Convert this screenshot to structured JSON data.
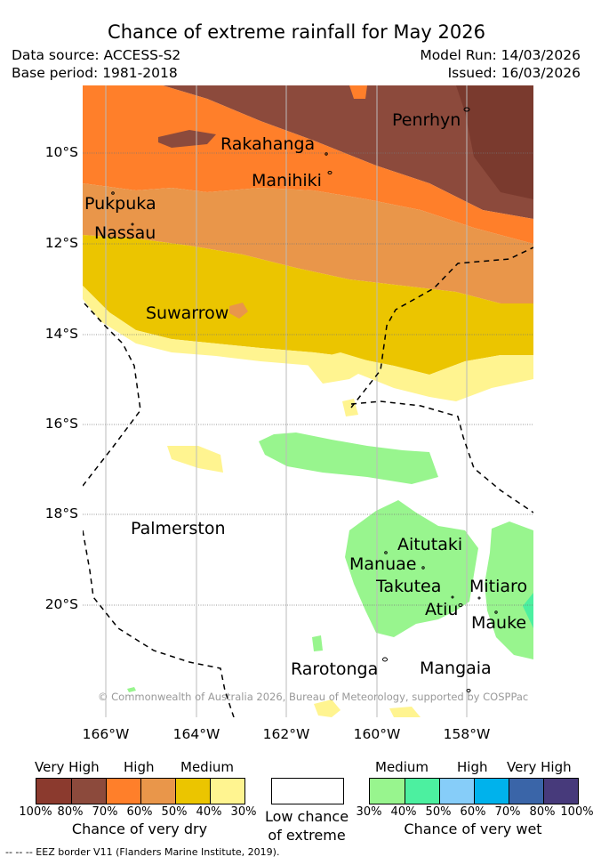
{
  "title": "Chance of extreme rainfall for May 2026",
  "meta": {
    "data_source": "Data source: ACCESS-S2",
    "base_period": "Base period: 1981-2018",
    "model_run": "Model Run: 14/03/2026",
    "issued": "Issued: 16/03/2026"
  },
  "axes": {
    "lat_labels": [
      "10°S",
      "12°S",
      "14°S",
      "16°S",
      "18°S",
      "20°S"
    ],
    "lon_labels": [
      "166°W",
      "164°W",
      "162°W",
      "160°W",
      "158°W"
    ]
  },
  "places": {
    "penrhyn": "Penrhyn",
    "rakahanga": "Rakahanga",
    "manihiki": "Manihiki",
    "pukapuka": "Pukpuka",
    "nassau": "Nassau",
    "suwarrow": "Suwarrow",
    "palmerston": "Palmerston",
    "aitutaki": "Aitutaki",
    "manuae": "Manuae",
    "takutea": "Takutea",
    "mitiaro": "Mitiaro",
    "atiu": "Atiu",
    "mauke": "Mauke",
    "rarotonga": "Rarotonga",
    "mangaia": "Mangaia"
  },
  "copyright": "© Commonwealth of Australia 2026, Bureau of Meteorology, supported by COSPPac",
  "legend": {
    "dry": {
      "heads": [
        "Very High",
        "High",
        "Medium"
      ],
      "percents": [
        "100%",
        "80%",
        "70%",
        "60%",
        "50%",
        "40%",
        "30%"
      ],
      "colors": [
        "#8b3a2e",
        "#8c4a3c",
        "#ff7f2a",
        "#e9964a",
        "#ebc500",
        "#fff490"
      ],
      "caption": "Chance of very dry"
    },
    "neutral": {
      "caption_line1": "Low chance",
      "caption_line2": "of extreme",
      "color": "#ffffff"
    },
    "wet": {
      "heads": [
        "Medium",
        "High",
        "Very High"
      ],
      "percents": [
        "30%",
        "40%",
        "50%",
        "60%",
        "70%",
        "80%",
        "100%"
      ],
      "colors": [
        "#98f58e",
        "#4cf0a0",
        "#86cdf9",
        "#00b2ec",
        "#3a65a8",
        "#473a7b"
      ],
      "caption": "Chance of very wet"
    }
  },
  "footer": "--  --  -- EEZ border V11 (Flanders Marine Institute, 2019)."
}
